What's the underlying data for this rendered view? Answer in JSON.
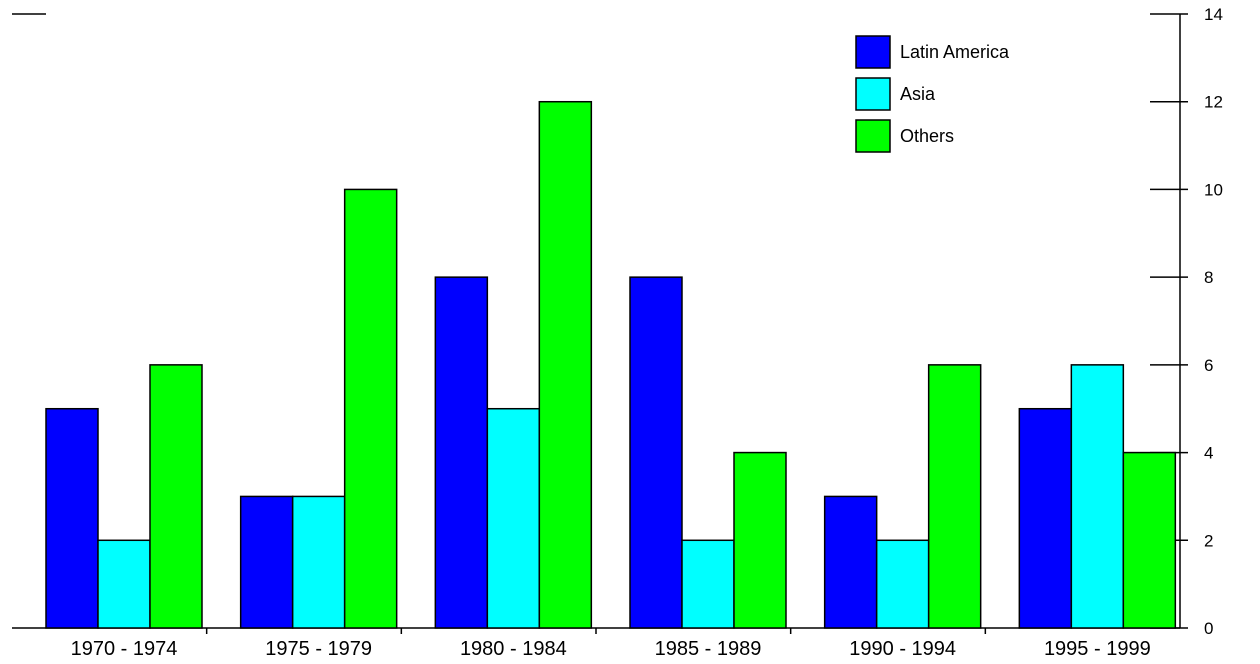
{
  "chart_data": {
    "type": "bar",
    "categories": [
      "1970 - 1974",
      "1975 - 1979",
      "1980 - 1984",
      "1985 - 1989",
      "1990 - 1994",
      "1995 - 1999"
    ],
    "series": [
      {
        "name": "Latin America",
        "color": "#0000ff",
        "values": [
          5,
          3,
          8,
          8,
          3,
          5
        ]
      },
      {
        "name": "Asia",
        "color": "#00ffff",
        "values": [
          2,
          3,
          5,
          2,
          2,
          6
        ]
      },
      {
        "name": "Others",
        "color": "#00ff00",
        "values": [
          6,
          10,
          12,
          4,
          6,
          4
        ]
      }
    ],
    "ylim": [
      0,
      14
    ],
    "yticks": [
      0,
      2,
      4,
      6,
      8,
      10,
      12,
      14
    ],
    "y_axis_side": "right",
    "legend_position": "top-right",
    "grid": false
  }
}
